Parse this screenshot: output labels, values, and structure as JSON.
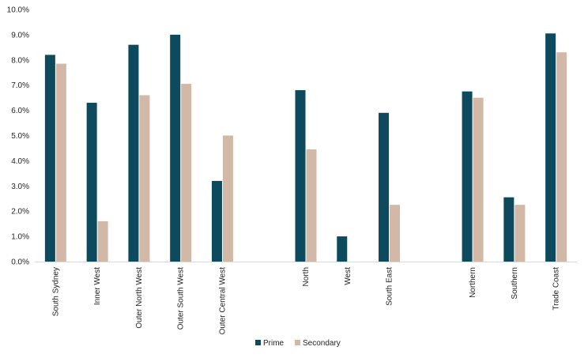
{
  "chart_data": {
    "type": "bar",
    "title": "",
    "xlabel": "",
    "ylabel": "",
    "ylim": [
      0,
      10
    ],
    "y_ticks": [
      "0.0%",
      "1.0%",
      "2.0%",
      "3.0%",
      "4.0%",
      "5.0%",
      "6.0%",
      "7.0%",
      "8.0%",
      "9.0%",
      "10.0%"
    ],
    "grid": false,
    "legend_position": "bottom-center",
    "categories": [
      "South Sydney",
      "Inner West",
      "Outer North West",
      "Outer South West",
      "Outer Central West",
      "",
      "North",
      "West",
      "South East",
      "",
      "Northern",
      "Southern",
      "Trade Coast"
    ],
    "series": [
      {
        "name": "Prime",
        "color": "#0d4a5e",
        "values": [
          8.2,
          6.3,
          8.6,
          9.0,
          3.2,
          null,
          6.8,
          1.0,
          5.9,
          null,
          6.75,
          2.55,
          9.05
        ]
      },
      {
        "name": "Secondary",
        "color": "#d2b8a6",
        "values": [
          7.85,
          1.6,
          6.6,
          7.05,
          5.0,
          null,
          4.45,
          null,
          2.25,
          null,
          6.5,
          2.25,
          8.3
        ]
      }
    ]
  }
}
